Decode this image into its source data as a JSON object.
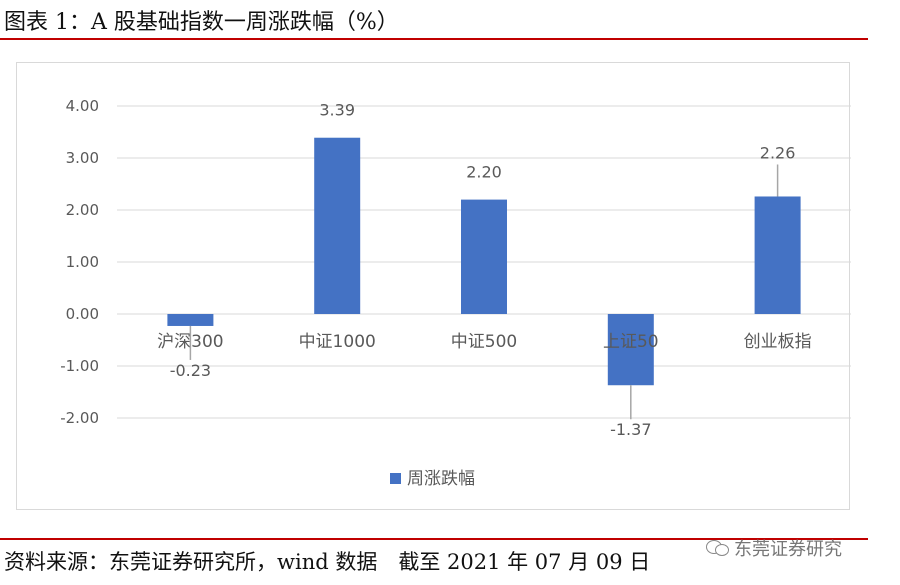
{
  "header": {
    "title": "图表 1：A 股基础指数一周涨跌幅（%）"
  },
  "footer": {
    "source": "资料来源：东莞证券研究所，wind 数据　截至 2021 年 07 月 09 日",
    "watermark": "东莞证券研究"
  },
  "colors": {
    "bar": "#4472c4",
    "grid": "#d9d9d9",
    "rule": "#c00000",
    "text": "#595959"
  },
  "chart_data": {
    "type": "bar",
    "title": "",
    "xlabel": "",
    "ylabel": "",
    "categories": [
      "沪深300",
      "中证1000",
      "中证500",
      "上证50",
      "创业板指"
    ],
    "series": [
      {
        "name": "周涨跌幅",
        "values": [
          -0.23,
          3.39,
          2.2,
          -1.37,
          2.26
        ]
      }
    ],
    "data_labels": [
      "-0.23",
      "3.39",
      "2.20",
      "-1.37",
      "2.26"
    ],
    "ylim": [
      -2.0,
      4.0
    ],
    "yticks": [
      "4.00",
      "3.00",
      "2.00",
      "1.00",
      "0.00",
      "-1.00",
      "-2.00"
    ],
    "grid": true,
    "legend": "bottom"
  }
}
